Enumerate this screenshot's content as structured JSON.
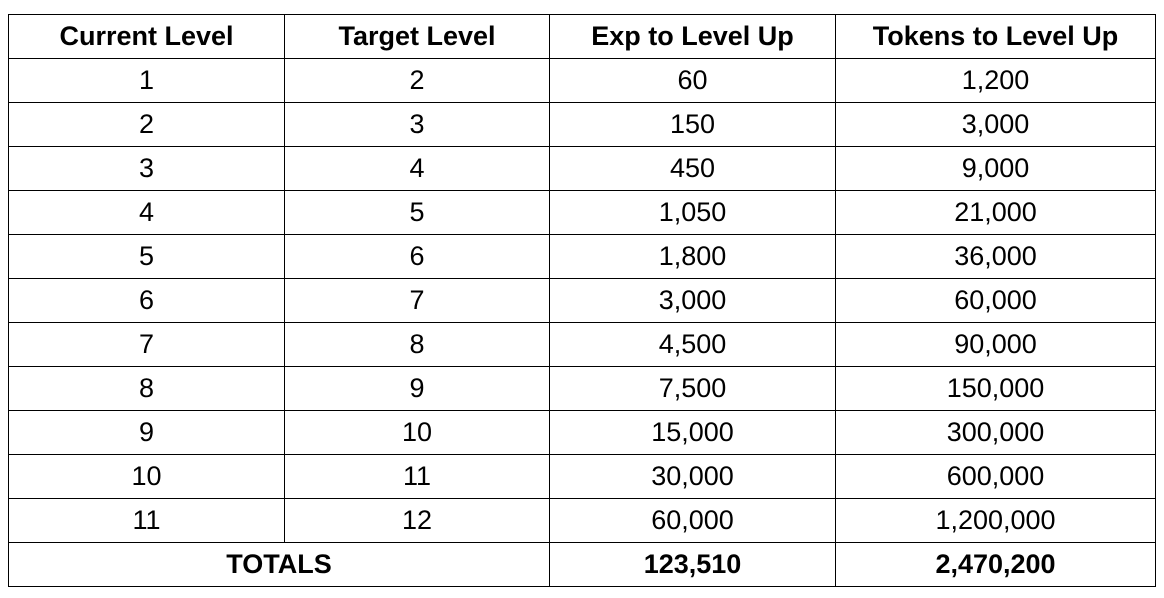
{
  "table": {
    "headers": [
      "Current Level",
      "Target Level",
      "Exp to Level Up",
      "Tokens to Level Up"
    ],
    "rows": [
      [
        "1",
        "2",
        "60",
        "1,200"
      ],
      [
        "2",
        "3",
        "150",
        "3,000"
      ],
      [
        "3",
        "4",
        "450",
        "9,000"
      ],
      [
        "4",
        "5",
        "1,050",
        "21,000"
      ],
      [
        "5",
        "6",
        "1,800",
        "36,000"
      ],
      [
        "6",
        "7",
        "3,000",
        "60,000"
      ],
      [
        "7",
        "8",
        "4,500",
        "90,000"
      ],
      [
        "8",
        "9",
        "7,500",
        "150,000"
      ],
      [
        "9",
        "10",
        "15,000",
        "300,000"
      ],
      [
        "10",
        "11",
        "30,000",
        "600,000"
      ],
      [
        "11",
        "12",
        "60,000",
        "1,200,000"
      ]
    ],
    "totals": {
      "label": "TOTALS",
      "exp": "123,510",
      "tokens": "2,470,200"
    }
  }
}
